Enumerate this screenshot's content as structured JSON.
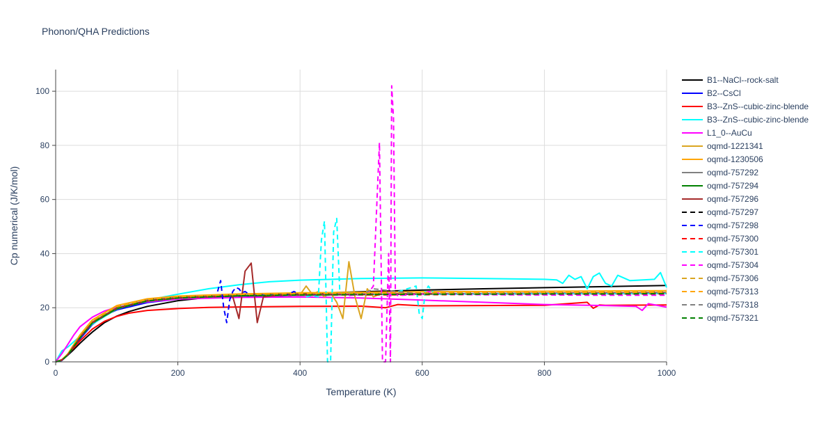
{
  "chart_data": {
    "type": "line",
    "title": "Phonon/QHA Predictions",
    "xlabel": "Temperature (K)",
    "ylabel": "Cp numerical (J/K/mol)",
    "xlim": [
      0,
      1000
    ],
    "ylim": [
      0,
      108
    ],
    "xticks": [
      0,
      200,
      400,
      600,
      800,
      1000
    ],
    "yticks": [
      0,
      20,
      40,
      60,
      80,
      100
    ],
    "grid": true,
    "legend_position": "right",
    "series": [
      {
        "name": "B1--NaCl--rock-salt",
        "color": "#000000",
        "dash": "solid",
        "x": [
          0,
          10,
          20,
          30,
          40,
          50,
          60,
          80,
          100,
          120,
          150,
          200,
          250,
          300,
          400,
          500,
          600,
          700,
          800,
          900,
          1000
        ],
        "y": [
          0,
          0.8,
          2.5,
          4.6,
          6.9,
          9.0,
          11.0,
          14.5,
          16.9,
          18.6,
          20.5,
          22.6,
          23.8,
          24.4,
          25.2,
          25.9,
          26.5,
          27.0,
          27.4,
          27.8,
          28.2
        ]
      },
      {
        "name": "B2--CsCl",
        "color": "#0000ff",
        "dash": "solid",
        "x": [
          0,
          10,
          20,
          40,
          60,
          80,
          100,
          150,
          200,
          300,
          400,
          500,
          600,
          700,
          800,
          900,
          1000
        ],
        "y": [
          0,
          0.5,
          2.5,
          8.5,
          13.8,
          17.1,
          19.2,
          21.9,
          23.2,
          24.1,
          24.6,
          24.9,
          25.1,
          25.2,
          25.3,
          25.4,
          25.5
        ]
      },
      {
        "name": "B3--ZnS--cubic-zinc-blende",
        "color": "#ff0000",
        "dash": "solid",
        "x": [
          0,
          10,
          20,
          30,
          40,
          60,
          80,
          100,
          120,
          150,
          200,
          250,
          300,
          400,
          500,
          540,
          560,
          600,
          700,
          800,
          870,
          880,
          890,
          900,
          1000
        ],
        "y": [
          0,
          0.8,
          2.8,
          5.3,
          7.8,
          12.1,
          15.0,
          16.8,
          18.0,
          19.0,
          19.7,
          20.1,
          20.3,
          20.5,
          20.6,
          20.0,
          21.2,
          20.7,
          20.8,
          20.9,
          22.0,
          19.8,
          21.0,
          20.9,
          21.0
        ]
      },
      {
        "name": "B3--ZnS--cubic-zinc-blende",
        "color": "#00ffff",
        "dash": "solid",
        "x": [
          0,
          10,
          20,
          40,
          60,
          100,
          150,
          200,
          250,
          300,
          350,
          400,
          500,
          600,
          700,
          800,
          820,
          830,
          840,
          850,
          860,
          870,
          880,
          890,
          900,
          910,
          920,
          930,
          940,
          980,
          990,
          1000
        ],
        "y": [
          0,
          4.0,
          5.5,
          9.5,
          14.0,
          19.5,
          22.8,
          25.0,
          27.0,
          28.5,
          29.6,
          30.2,
          30.8,
          31.0,
          30.8,
          30.5,
          30.3,
          29.0,
          32.0,
          30.5,
          31.5,
          27.0,
          31.5,
          32.8,
          29.0,
          28.0,
          32.0,
          31.0,
          30.0,
          30.5,
          33.0,
          27.5
        ]
      },
      {
        "name": "L1_0--AuCu",
        "color": "#ff00ff",
        "dash": "solid",
        "x": [
          0,
          10,
          20,
          30,
          40,
          60,
          80,
          100,
          150,
          200,
          300,
          400,
          500,
          600,
          700,
          800,
          900,
          950,
          960,
          970,
          1000
        ],
        "y": [
          0,
          3.0,
          6.5,
          10.0,
          13.0,
          16.5,
          18.8,
          20.2,
          22.2,
          23.2,
          23.8,
          24.0,
          23.6,
          22.8,
          22.0,
          21.2,
          20.8,
          20.5,
          19.0,
          21.5,
          20.2
        ]
      },
      {
        "name": "oqmd-1221341",
        "color": "#daa520",
        "dash": "solid",
        "x": [
          0,
          10,
          20,
          40,
          60,
          100,
          150,
          200,
          300,
          400,
          410,
          420,
          430,
          440,
          450,
          460,
          470,
          480,
          490,
          500,
          510,
          520,
          530,
          540,
          600,
          700,
          800,
          900,
          1000
        ],
        "y": [
          0,
          0.6,
          2.8,
          9.5,
          14.8,
          20.0,
          22.5,
          23.6,
          24.5,
          24.8,
          28.0,
          25.0,
          26.0,
          24.0,
          25.5,
          22.0,
          16.0,
          37.0,
          24.0,
          16.0,
          27.0,
          24.0,
          25.0,
          25.0,
          25.1,
          25.2,
          25.3,
          25.3,
          25.4
        ]
      },
      {
        "name": "oqmd-1230506",
        "color": "#ffa500",
        "dash": "solid",
        "x": [
          0,
          10,
          20,
          40,
          60,
          100,
          150,
          200,
          300,
          400,
          500,
          600,
          700,
          800,
          900,
          1000
        ],
        "y": [
          0,
          0.7,
          3.0,
          10.0,
          15.5,
          20.8,
          23.3,
          24.3,
          25.1,
          25.5,
          25.7,
          25.9,
          26.0,
          26.1,
          26.2,
          26.3
        ]
      },
      {
        "name": "oqmd-757292",
        "color": "#808080",
        "dash": "solid",
        "x": [
          0,
          10,
          20,
          40,
          60,
          100,
          150,
          200,
          300,
          400,
          500,
          600,
          700,
          800,
          900,
          1000
        ],
        "y": [
          0,
          0.6,
          2.7,
          9.2,
          14.6,
          20.0,
          22.8,
          23.8,
          24.6,
          24.9,
          25.1,
          25.2,
          25.3,
          25.4,
          25.5,
          25.6
        ]
      },
      {
        "name": "oqmd-757294",
        "color": "#008000",
        "dash": "solid",
        "x": [
          0,
          10,
          20,
          40,
          60,
          100,
          150,
          200,
          300,
          400,
          500,
          600,
          700,
          800,
          900,
          1000
        ],
        "y": [
          0,
          0.6,
          2.6,
          9.0,
          14.3,
          19.6,
          22.5,
          23.6,
          24.4,
          24.7,
          24.9,
          25.0,
          25.1,
          25.2,
          25.3,
          25.3
        ]
      },
      {
        "name": "oqmd-757296",
        "color": "#a52a2a",
        "dash": "solid",
        "x": [
          0,
          10,
          20,
          40,
          60,
          100,
          150,
          200,
          280,
          290,
          300,
          310,
          320,
          330,
          340,
          360,
          400,
          500,
          600,
          700,
          800,
          900,
          1000
        ],
        "y": [
          0,
          0.6,
          2.7,
          9.1,
          14.5,
          19.8,
          22.6,
          23.7,
          24.3,
          24.0,
          16.0,
          33.5,
          36.5,
          14.5,
          24.0,
          24.5,
          24.8,
          25.0,
          25.1,
          25.2,
          25.3,
          25.4,
          25.5
        ]
      },
      {
        "name": "oqmd-757297",
        "color": "#000000",
        "dash": "dash",
        "x": [
          0,
          10,
          20,
          40,
          60,
          100,
          150,
          200,
          300,
          400,
          500,
          600,
          700,
          800,
          900,
          1000
        ],
        "y": [
          0,
          0.6,
          2.7,
          9.3,
          14.7,
          20.1,
          22.9,
          23.9,
          24.7,
          25.0,
          25.2,
          25.3,
          25.4,
          25.5,
          25.6,
          25.7
        ]
      },
      {
        "name": "oqmd-757298",
        "color": "#0000ff",
        "dash": "dash",
        "x": [
          265,
          270,
          275,
          280,
          285,
          290,
          295,
          300,
          305,
          310,
          320,
          340,
          360,
          380,
          390,
          400,
          500,
          600,
          700,
          800,
          900,
          1000
        ],
        "y": [
          26.0,
          30.0,
          20.0,
          14.5,
          23.0,
          26.0,
          27.5,
          27.0,
          25.5,
          26.0,
          24.5,
          24.8,
          24.6,
          24.9,
          26.0,
          24.9,
          25.0,
          25.1,
          25.2,
          25.3,
          25.3,
          25.4
        ]
      },
      {
        "name": "oqmd-757300",
        "color": "#ff0000",
        "dash": "dash",
        "x": [
          0,
          10,
          20,
          40,
          60,
          100,
          150,
          200,
          300,
          400,
          500,
          600,
          700,
          800,
          900,
          1000
        ],
        "y": [
          0,
          0.6,
          2.6,
          9.0,
          14.4,
          19.7,
          22.6,
          23.6,
          24.4,
          24.6,
          24.7,
          24.8,
          24.9,
          24.9,
          25.0,
          25.0
        ]
      },
      {
        "name": "oqmd-757301",
        "color": "#00ffff",
        "dash": "dash",
        "x": [
          410,
          420,
          430,
          435,
          440,
          445,
          450,
          455,
          460,
          465,
          470,
          480,
          500,
          550,
          590,
          595,
          600,
          605,
          610,
          620,
          700,
          800,
          900,
          1000
        ],
        "y": [
          24.0,
          24.5,
          24.0,
          45.0,
          52.0,
          0.0,
          0.0,
          48.0,
          53.0,
          26.0,
          25.0,
          25.5,
          25.0,
          25.2,
          28.0,
          18.0,
          16.0,
          26.0,
          28.0,
          25.0,
          25.1,
          25.2,
          25.2,
          25.3
        ]
      },
      {
        "name": "oqmd-757304",
        "color": "#ff00ff",
        "dash": "dash",
        "x": [
          480,
          500,
          510,
          520,
          525,
          530,
          535,
          540,
          545,
          548,
          550,
          553,
          556,
          560,
          580,
          600,
          610,
          620,
          640,
          700,
          800,
          900,
          1000
        ],
        "y": [
          24.5,
          24.8,
          25.0,
          28.0,
          55.0,
          81.0,
          0.0,
          0.0,
          40.0,
          0.0,
          102.0,
          90.0,
          25.0,
          24.5,
          24.8,
          25.0,
          26.0,
          25.5,
          25.0,
          24.8,
          24.7,
          24.6,
          24.6
        ]
      },
      {
        "name": "oqmd-757306",
        "color": "#daa520",
        "dash": "dash",
        "x": [
          0,
          10,
          20,
          40,
          60,
          100,
          150,
          200,
          300,
          400,
          500,
          600,
          700,
          800,
          900,
          1000
        ],
        "y": [
          0,
          0.6,
          2.6,
          9.1,
          14.5,
          19.9,
          22.7,
          23.7,
          24.5,
          24.8,
          25.0,
          25.1,
          25.2,
          25.3,
          25.3,
          25.4
        ]
      },
      {
        "name": "oqmd-757313",
        "color": "#ffa500",
        "dash": "dash",
        "x": [
          0,
          10,
          20,
          40,
          60,
          100,
          150,
          200,
          300,
          400,
          500,
          600,
          700,
          800,
          900,
          1000
        ],
        "y": [
          0,
          0.7,
          2.9,
          9.8,
          15.2,
          20.5,
          23.0,
          24.1,
          24.9,
          25.2,
          25.4,
          25.5,
          25.6,
          25.7,
          25.7,
          25.8
        ]
      },
      {
        "name": "oqmd-757318",
        "color": "#808080",
        "dash": "dash",
        "x": [
          0,
          10,
          20,
          40,
          60,
          100,
          150,
          200,
          300,
          400,
          500,
          520,
          600,
          700,
          800,
          900,
          1000
        ],
        "y": [
          0,
          0.6,
          2.6,
          9.0,
          14.3,
          19.6,
          22.4,
          23.5,
          24.3,
          24.6,
          24.8,
          27.0,
          24.9,
          25.0,
          25.1,
          25.1,
          25.2
        ]
      },
      {
        "name": "oqmd-757321",
        "color": "#008000",
        "dash": "dash",
        "x": [
          0,
          10,
          20,
          40,
          60,
          100,
          150,
          200,
          300,
          400,
          500,
          600,
          700,
          800,
          900,
          1000
        ],
        "y": [
          0,
          0.6,
          2.6,
          9.0,
          14.4,
          19.7,
          22.5,
          23.6,
          24.4,
          24.7,
          24.9,
          25.0,
          25.0,
          25.1,
          25.1,
          25.2
        ]
      }
    ]
  }
}
